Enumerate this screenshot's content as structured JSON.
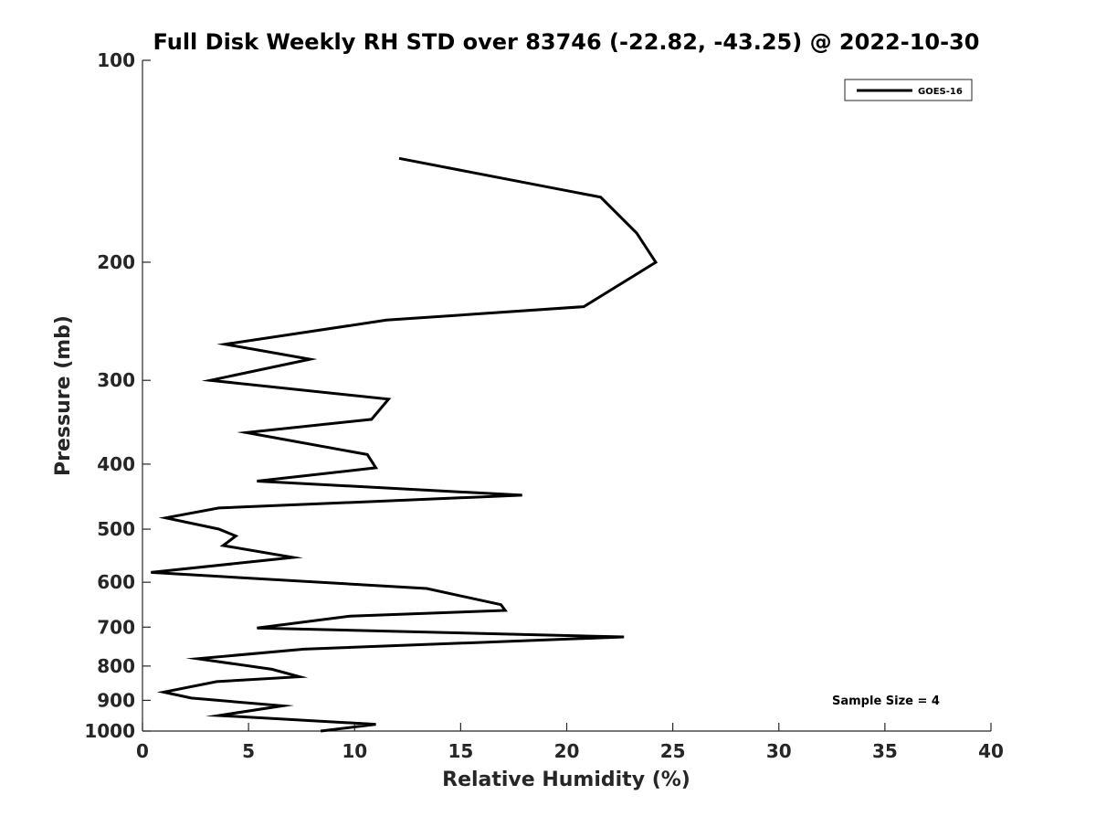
{
  "chart_data": {
    "type": "line",
    "title": "Full Disk Weekly RH STD over 83746 (-22.82, -43.25) @ 2022-10-30",
    "xlabel": "Relative Humidity (%)",
    "ylabel": "Pressure (mb)",
    "xlim": [
      0,
      40
    ],
    "ylim": [
      100,
      1000
    ],
    "yscale": "log",
    "y_reversed": true,
    "grid": false,
    "legend_position": "top-right",
    "x_ticks": [
      "0",
      "5",
      "10",
      "15",
      "20",
      "25",
      "30",
      "35",
      "40"
    ],
    "y_ticks": [
      "100",
      "200",
      "300",
      "400",
      "500",
      "600",
      "700",
      "800",
      "900",
      "1000"
    ],
    "annotation": "Sample Size = 4",
    "series": [
      {
        "name": "GOES-16",
        "color": "#000000",
        "x": [
          12.1,
          21.6,
          23.3,
          24.2,
          20.8,
          11.5,
          3.9,
          7.9,
          3.2,
          11.6,
          10.8,
          4.9,
          10.6,
          11.0,
          5.4,
          17.9,
          3.6,
          1.1,
          3.6,
          4.4,
          3.8,
          7.1,
          0.4,
          13.4,
          16.9,
          17.1,
          9.8,
          5.4,
          22.7,
          7.6,
          2.6,
          6.1,
          7.4,
          3.5,
          1.0,
          2.3,
          6.6,
          3.6,
          11.0,
          8.4
        ],
        "y": [
          140,
          160,
          181,
          200,
          233,
          244,
          265,
          279,
          300,
          320,
          343,
          359,
          387,
          405,
          424,
          445,
          465,
          481,
          500,
          512,
          529,
          551,
          580,
          613,
          648,
          661,
          674,
          702,
          724,
          755,
          780,
          809,
          830,
          844,
          875,
          893,
          917,
          948,
          977,
          1000
        ]
      }
    ]
  }
}
